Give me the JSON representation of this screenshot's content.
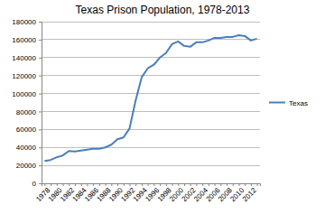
{
  "chart_data": {
    "type": "line",
    "title": "Texas Prison Population, 1978-2013",
    "categories": [
      "1978",
      null,
      "1980",
      null,
      "1982",
      null,
      "1984",
      null,
      "1986",
      null,
      "1988",
      null,
      "1990",
      null,
      "1992",
      null,
      "1994",
      null,
      "1996",
      null,
      "1998",
      null,
      "2000",
      null,
      "2002",
      null,
      "2004",
      null,
      "2006",
      null,
      "2008",
      null,
      "2010",
      null,
      "2012",
      null
    ],
    "series": [
      {
        "name": "Texas",
        "color": "#4a7ebb",
        "values": [
          25000,
          26000,
          29000,
          31000,
          36000,
          35500,
          36500,
          37500,
          38500,
          38500,
          40000,
          43000,
          49000,
          51000,
          61000,
          92000,
          118000,
          128000,
          132000,
          140000,
          145000,
          155000,
          158000,
          153000,
          152000,
          157000,
          157000,
          159000,
          162000,
          162000,
          163000,
          163000,
          165000,
          164000,
          159000,
          161000
        ]
      }
    ],
    "ylim": [
      0,
      180000
    ],
    "yticks": [
      0,
      20000,
      40000,
      60000,
      80000,
      100000,
      120000,
      140000,
      160000,
      180000
    ],
    "grid": true,
    "legend": "right"
  }
}
